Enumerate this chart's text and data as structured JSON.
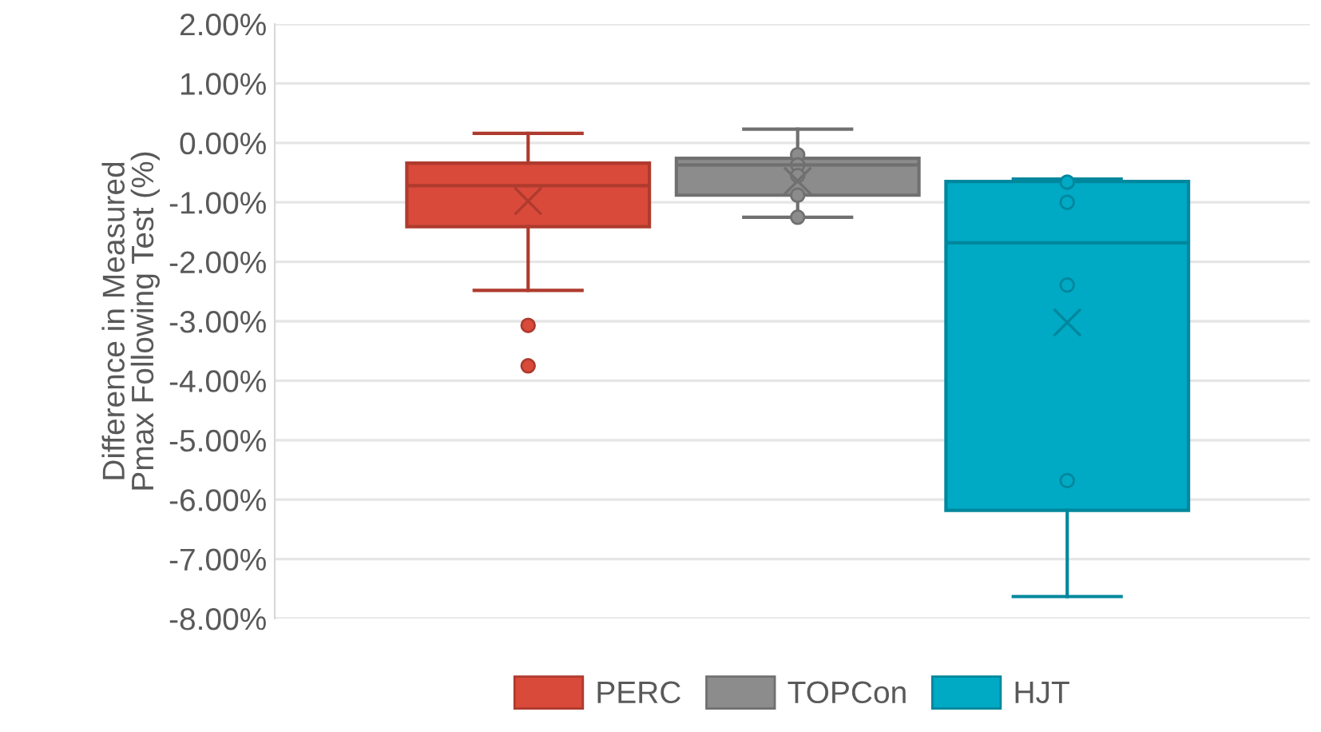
{
  "chart_data": {
    "type": "box",
    "ylabel": "Difference in Measured\nPmax Following Test (%)",
    "categories": [
      null
    ],
    "series": [
      {
        "name": "PERC",
        "color": "#d94a3a",
        "boxes": [
          {
            "low": -2.48,
            "q1": -1.41,
            "median": -0.72,
            "q3": -0.34,
            "high": 0.16,
            "mean": -0.98,
            "outliers": [
              -3.07,
              -3.75
            ]
          }
        ]
      },
      {
        "name": "TOPCon",
        "color": "#8c8c8c",
        "boxes": [
          {
            "low": -1.25,
            "q1": -0.88,
            "median": -0.37,
            "q3": -0.26,
            "high": 0.23,
            "mean": -0.64,
            "outliers": [
              -0.2,
              -0.37,
              -0.55,
              -0.88,
              -1.25
            ]
          }
        ]
      },
      {
        "name": "HJT",
        "color": "#00a9c4",
        "boxes": [
          {
            "low": -7.63,
            "q1": -6.18,
            "median": -1.68,
            "q3": -0.65,
            "high": -0.61,
            "mean": -3.02,
            "outliers": [
              -0.66,
              -1.0,
              -2.39,
              -5.68
            ]
          }
        ]
      }
    ],
    "ylim": [
      -8,
      2
    ],
    "yticks": [
      {
        "value": 2,
        "label": "2.00%"
      },
      {
        "value": 1,
        "label": "1.00%"
      },
      {
        "value": 0,
        "label": "0.00%"
      },
      {
        "value": -1,
        "label": "-1.00%"
      },
      {
        "value": -2,
        "label": "-2.00%"
      },
      {
        "value": -3,
        "label": "-3.00%"
      },
      {
        "value": -4,
        "label": "-4.00%"
      },
      {
        "value": -5,
        "label": "-5.00%"
      },
      {
        "value": -6,
        "label": "-6.00%"
      },
      {
        "value": -7,
        "label": "-7.00%"
      },
      {
        "value": -8,
        "label": "-8.00%"
      }
    ],
    "grid": "y",
    "legend": "bottom",
    "tick_labels": "y"
  }
}
